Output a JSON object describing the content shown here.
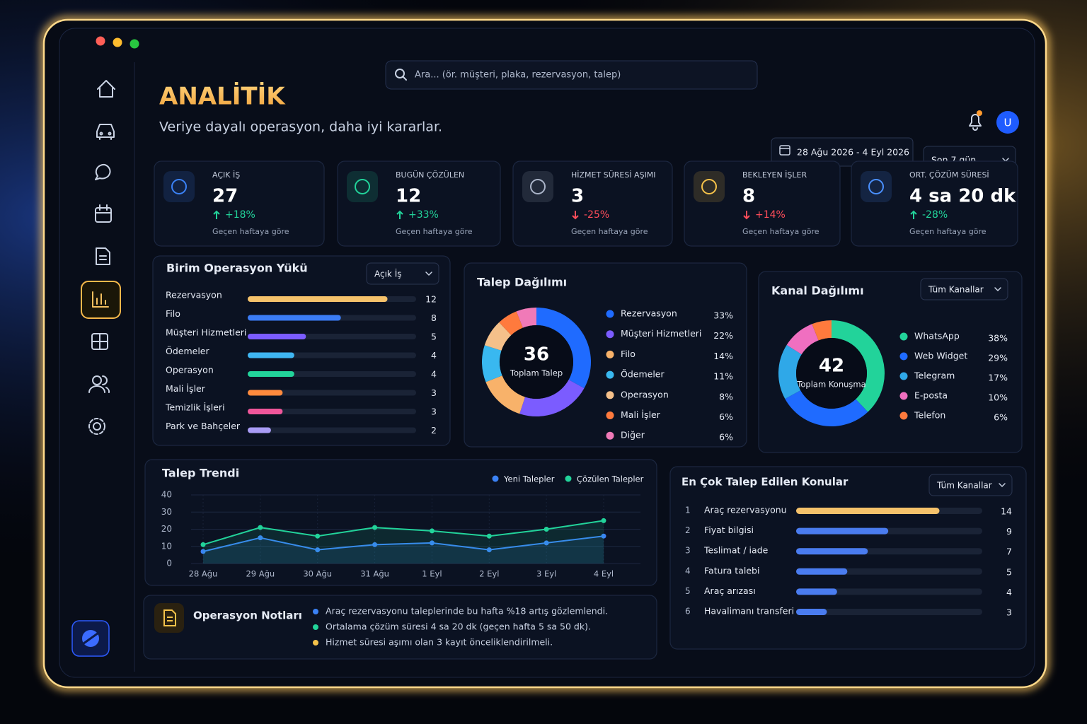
{
  "search_placeholder": "Ara... (ör. müşteri, plaka, rezervasyon, talep)",
  "header": {
    "title": "ANALİTİK",
    "subtitle": "Veriye dayalı operasyon, daha iyi kararlar.",
    "user_initial": "U",
    "date_range": "28 Ağu 2026 - 4 Eyl 2026",
    "period": "Son 7 gün"
  },
  "kpis": [
    {
      "label": "AÇIK İŞ",
      "value": "27",
      "change": "+18%",
      "trend": "up",
      "note": "Geçen haftaya göre",
      "color": "#3b82f6"
    },
    {
      "label": "BUGÜN ÇÖZÜLEN",
      "value": "12",
      "change": "+33%",
      "trend": "up",
      "note": "Geçen haftaya göre",
      "color": "#22d39a"
    },
    {
      "label": "HİZMET SÜRESİ AŞIMI",
      "value": "3",
      "change": "-25%",
      "trend": "down",
      "note": "Geçen haftaya göre",
      "color": "#aab4c8"
    },
    {
      "label": "BEKLEYEN İŞLER",
      "value": "8",
      "change": "+14%",
      "trend": "down",
      "note": "Geçen haftaya göre",
      "color": "#f5c24a"
    },
    {
      "label": "ORT. ÇÖZÜM SÜRESİ",
      "value": "4 sa 20 dk",
      "change": "-28%",
      "trend": "up",
      "note": "Geçen haftaya göre",
      "color": "#4a90ff"
    }
  ],
  "workload": {
    "type": "bar",
    "title": "Birim Operasyon Yükü",
    "filter": "Açık İş",
    "categories": [
      "Rezervasyon",
      "Filo",
      "Müşteri Hizmetleri",
      "Ödemeler",
      "Operasyon",
      "Mali İşler",
      "Temizlik İşleri",
      "Park ve Bahçeler"
    ],
    "values": [
      12,
      8,
      5,
      4,
      4,
      3,
      3,
      2
    ],
    "colors": [
      "#f5c26b",
      "#3b7cf5",
      "#7b5cff",
      "#3fb6f2",
      "#22d39a",
      "#ff8a3d",
      "#f0569a",
      "#a99cf5"
    ]
  },
  "requests": {
    "type": "pie",
    "title": "Talep Dağılımı",
    "total": "36",
    "total_label": "Toplam Talep",
    "categories": [
      "Rezervasyon",
      "Müşteri Hizmetleri",
      "Filo",
      "Ödemeler",
      "Operasyon",
      "Mali İşler",
      "Diğer"
    ],
    "values": [
      33,
      22,
      14,
      11,
      8,
      6,
      6
    ],
    "value_labels": [
      "33%",
      "22%",
      "14%",
      "11%",
      "8%",
      "6%",
      "6%"
    ],
    "colors": [
      "#1f6bff",
      "#7b5cff",
      "#f8b26a",
      "#39b8f0",
      "#f5c08a",
      "#ff7a3d",
      "#f07ab8"
    ]
  },
  "channels": {
    "type": "pie",
    "title": "Kanal Dağılımı",
    "filter": "Tüm Kanallar",
    "total": "42",
    "total_label": "Toplam Konuşma",
    "categories": [
      "WhatsApp",
      "Web Widget",
      "Telegram",
      "E-posta",
      "Telefon"
    ],
    "values": [
      38,
      29,
      17,
      10,
      6
    ],
    "value_labels": [
      "38%",
      "29%",
      "17%",
      "10%",
      "6%"
    ],
    "colors": [
      "#22d39a",
      "#1f6bff",
      "#2fa8e8",
      "#f06fc0",
      "#ff7a3d"
    ]
  },
  "trend": {
    "type": "line",
    "title": "Talep Trendi",
    "categories": [
      "28 Ağu",
      "29 Ağu",
      "30 Ağu",
      "31 Ağu",
      "1 Eyl",
      "2 Eyl",
      "3 Eyl",
      "4 Eyl"
    ],
    "series": [
      {
        "name": "Yeni Talepler",
        "color": "#3b82f6",
        "values": [
          7,
          15,
          8,
          11,
          12,
          8,
          12,
          16
        ]
      },
      {
        "name": "Çözülen Talepler",
        "color": "#22d39a",
        "values": [
          11,
          21,
          16,
          21,
          19,
          16,
          20,
          25
        ]
      }
    ],
    "ylim": [
      0,
      40
    ],
    "yticks": [
      0,
      10,
      20,
      30,
      40
    ],
    "grid": true
  },
  "topics": {
    "type": "bar",
    "title": "En Çok Talep Edilen Konular",
    "filter": "Tüm Kanallar",
    "ranks": [
      "1",
      "2",
      "3",
      "4",
      "5",
      "6"
    ],
    "categories": [
      "Araç rezervasyonu",
      "Fiyat bilgisi",
      "Teslimat / iade",
      "Fatura talebi",
      "Araç arızası",
      "Havalimanı transferi"
    ],
    "values": [
      14,
      9,
      7,
      5,
      4,
      3
    ],
    "colors": [
      "#f5c26b",
      "#4a7cf0",
      "#4a7cf0",
      "#4a7cf0",
      "#4a7cf0",
      "#4a7cf0"
    ]
  },
  "notes": {
    "title": "Operasyon Notları",
    "items": [
      {
        "text": "Araç rezervasyonu taleplerinde bu hafta %18 artış gözlemlendi.",
        "color": "#3b82f6"
      },
      {
        "text": "Ortalama çözüm süresi 4 sa 20 dk (geçen hafta 5 sa 50 dk).",
        "color": "#22d39a"
      },
      {
        "text": "Hizmet süresi aşımı olan 3 kayıt önceliklendirilmeli.",
        "color": "#f5c24a"
      }
    ]
  }
}
